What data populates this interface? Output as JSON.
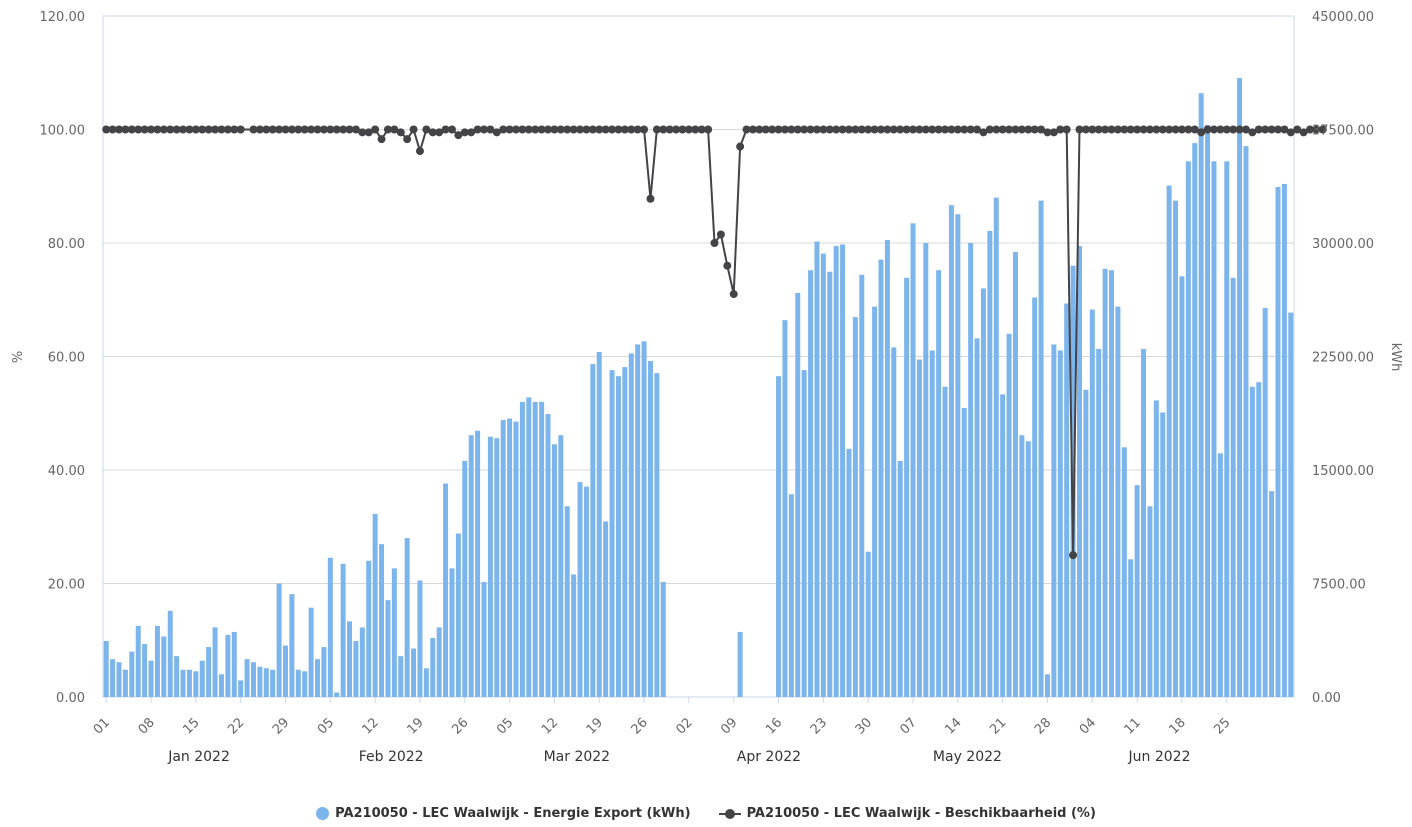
{
  "chart_data": {
    "type": "bar+line",
    "title": "",
    "x_start": "2022-01-01",
    "x_end": "2022-06-30",
    "x_tick_labels": [
      "01",
      "08",
      "15",
      "22",
      "29",
      "05",
      "12",
      "19",
      "26",
      "05",
      "12",
      "19",
      "26",
      "02",
      "09",
      "16",
      "23",
      "30",
      "07",
      "14",
      "21",
      "28",
      "04",
      "11",
      "18",
      "25"
    ],
    "month_labels": [
      "Jan 2022",
      "Feb 2022",
      "Mar 2022",
      "Apr 2022",
      "May 2022",
      "Jun 2022"
    ],
    "y_left": {
      "label": "%",
      "min": 0,
      "max": 120,
      "ticks": [
        "0.00",
        "20.00",
        "40.00",
        "60.00",
        "80.00",
        "100.00",
        "120.00"
      ]
    },
    "y_right": {
      "label": "kWh",
      "min": 0,
      "max": 45000,
      "ticks": [
        "0.00",
        "7500.00",
        "15000.00",
        "22500.00",
        "30000.00",
        "37500.00",
        "45000.00"
      ]
    },
    "grid": true,
    "legend_position": "bottom",
    "series": [
      {
        "name": "PA210050 - LEC Waalwijk - Energie Export (kWh)",
        "kind": "bar",
        "axis": "right",
        "color": "#7cb5ec",
        "values": [
          3700,
          2500,
          2300,
          1800,
          3000,
          4700,
          3500,
          2400,
          4700,
          4000,
          5700,
          2700,
          1800,
          1800,
          1700,
          2400,
          3300,
          4600,
          1500,
          4100,
          4300,
          1100,
          2500,
          2300,
          2000,
          1900,
          1800,
          7500,
          3400,
          6800,
          1800,
          1700,
          5900,
          2500,
          3300,
          9200,
          300,
          8800,
          5000,
          3700,
          4600,
          9000,
          12100,
          10100,
          6400,
          8500,
          2700,
          10500,
          3200,
          7700,
          1900,
          3900,
          4600,
          14100,
          8500,
          10800,
          15600,
          17300,
          17600,
          7600,
          17200,
          17100,
          18300,
          18400,
          18200,
          19500,
          19800,
          19500,
          19500,
          18700,
          16700,
          17300,
          12600,
          8100,
          14200,
          13900,
          22000,
          22800,
          11600,
          21600,
          21200,
          21800,
          22700,
          23300,
          23500,
          22200,
          21400,
          7600,
          0,
          0,
          0,
          0,
          0,
          0,
          0,
          0,
          0,
          0,
          0,
          4300,
          0,
          0,
          0,
          0,
          0,
          21200,
          24900,
          13400,
          26700,
          21600,
          28200,
          30100,
          29300,
          28100,
          29800,
          29900,
          16400,
          25100,
          27900,
          9600,
          25800,
          28900,
          30200,
          23100,
          15600,
          27700,
          31300,
          22300,
          30000,
          22900,
          28200,
          20500,
          32500,
          31900,
          19100,
          30000,
          23700,
          27000,
          30800,
          33000,
          20000,
          24000,
          29400,
          17300,
          16900,
          26400,
          32800,
          1500,
          23300,
          22900,
          26000,
          28500,
          29800,
          20300,
          25600,
          23000,
          28300,
          28200,
          25800,
          16500,
          9100,
          14000,
          23000,
          12600,
          19600,
          18800,
          33800,
          32800,
          27800,
          35400,
          36600,
          39900,
          37800,
          35400,
          16100,
          35400,
          27700,
          40900,
          36400,
          20500,
          20800,
          25700,
          13600,
          33700,
          33900,
          25400
        ],
        "bar_breaks": [
          89,
          99,
          104,
          168
        ]
      },
      {
        "name": "PA210050 - LEC Waalwijk - Beschikbaarheid (%)",
        "kind": "line",
        "axis": "left",
        "color": "#434348",
        "values": [
          100,
          100,
          100,
          100,
          100,
          100,
          100,
          100,
          100,
          100,
          100,
          100,
          100,
          100,
          100,
          100,
          100,
          100,
          100,
          100,
          100,
          100,
          null,
          100,
          100,
          100,
          100,
          100,
          100,
          100,
          100,
          100,
          100,
          100,
          100,
          100,
          100,
          100,
          100,
          100,
          99.5,
          99.5,
          100,
          98.3,
          100,
          100,
          99.5,
          98.3,
          100,
          96.2,
          100,
          99.5,
          99.5,
          100,
          100,
          99,
          99.5,
          99.5,
          100,
          100,
          100,
          99.5,
          100,
          100,
          100,
          100,
          100,
          100,
          100,
          100,
          100,
          100,
          100,
          100,
          100,
          100,
          100,
          100,
          100,
          100,
          100,
          100,
          100,
          100,
          100,
          87.8,
          100,
          100,
          100,
          100,
          100,
          100,
          100,
          100,
          100,
          80,
          81.5,
          76,
          71,
          97,
          100,
          100,
          100,
          100,
          100,
          100,
          100,
          100,
          100,
          100,
          100,
          100,
          100,
          100,
          100,
          100,
          100,
          100,
          100,
          100,
          100,
          100,
          100,
          100,
          100,
          100,
          100,
          100,
          100,
          100,
          100,
          100,
          100,
          100,
          100,
          100,
          100,
          99.5,
          100,
          100,
          100,
          100,
          100,
          100,
          100,
          100,
          100,
          99.5,
          99.5,
          100,
          100,
          25,
          100,
          100,
          100,
          100,
          100,
          100,
          100,
          100,
          100,
          100,
          100,
          100,
          100,
          100,
          100,
          100,
          100,
          100,
          100,
          99.5,
          100,
          100,
          100,
          100,
          100,
          100,
          100,
          99.5,
          100,
          100,
          100,
          100,
          100,
          99.5,
          100,
          99.5,
          100,
          100,
          100
        ],
        "line_x": [
          0,
          1,
          2,
          3,
          4,
          5,
          6,
          7,
          8,
          9,
          10,
          11,
          12,
          13,
          14,
          15,
          16,
          17,
          18,
          19,
          20,
          21,
          22,
          23,
          24,
          25,
          26,
          27,
          28,
          29,
          30,
          31,
          32,
          33,
          34,
          35,
          36,
          37,
          38,
          39,
          40,
          41,
          42,
          43,
          44,
          45,
          46,
          47,
          48,
          49,
          50,
          51,
          52,
          53,
          54,
          55,
          56,
          57,
          58,
          59,
          60,
          61,
          62,
          63,
          64,
          65,
          66,
          67,
          68,
          69,
          70,
          71,
          72,
          73,
          74,
          75,
          76,
          77,
          78,
          79,
          80,
          81,
          82,
          83,
          84,
          85,
          86,
          87,
          88,
          89,
          90,
          91,
          92,
          93,
          94,
          95,
          96,
          97,
          98,
          99,
          100,
          101,
          102,
          103,
          104,
          105,
          106,
          107,
          108,
          109,
          110,
          111,
          112,
          113,
          114,
          115,
          116,
          117,
          118,
          119,
          120,
          121,
          122,
          123,
          124,
          125,
          126,
          127,
          128,
          129,
          130,
          131,
          132,
          133,
          134,
          135,
          136,
          137,
          138,
          139,
          140,
          141,
          142,
          143,
          144,
          145,
          146,
          147,
          148,
          149,
          150,
          151,
          152,
          153,
          154,
          155,
          156,
          157,
          158,
          159,
          160,
          161,
          162,
          163,
          164,
          165,
          166,
          167,
          168,
          169,
          170,
          171,
          172,
          173,
          174,
          175,
          176,
          177,
          178,
          179,
          180
        ]
      }
    ]
  }
}
